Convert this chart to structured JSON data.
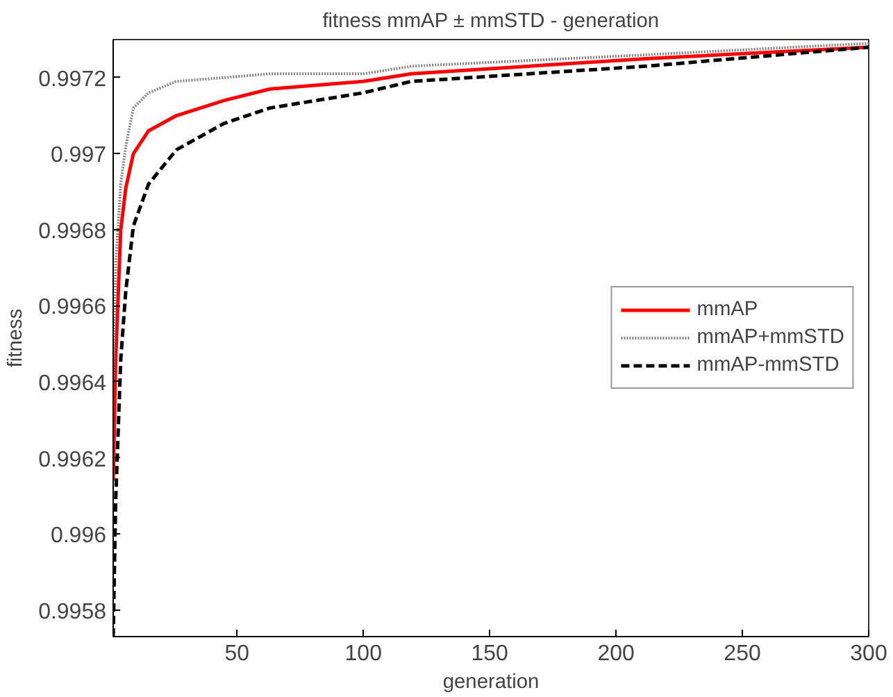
{
  "chart_data": {
    "type": "line",
    "title": "fitness mmAP ± mmSTD - generation",
    "xlabel": "generation",
    "ylabel": "fitness",
    "xlim": [
      1,
      300
    ],
    "ylim": [
      0.99573,
      0.9973
    ],
    "xticks": [
      50,
      100,
      150,
      200,
      250,
      300
    ],
    "yticks": [
      0.9958,
      0.996,
      0.9962,
      0.9964,
      0.9966,
      0.9968,
      0.997,
      0.9972
    ],
    "grid": false,
    "legend": "right",
    "marker": "none",
    "x": [
      1,
      2,
      4,
      6,
      9,
      15,
      26,
      45,
      63,
      100,
      119,
      212,
      300
    ],
    "series": [
      {
        "name": "mmAP",
        "color": "#ff0000",
        "line_style": "solid",
        "values": [
          0.99614,
          0.99646,
          0.9968,
          0.99691,
          0.997,
          0.99706,
          0.9971,
          0.99714,
          0.99717,
          0.99719,
          0.99721,
          0.99725,
          0.99728
        ]
      },
      {
        "name": "mmAP+mmSTD",
        "color": "#808080",
        "line_style": "dotted",
        "values": [
          0.9964,
          0.99671,
          0.99692,
          0.99702,
          0.99712,
          0.99716,
          0.99719,
          0.9972,
          0.99721,
          0.99721,
          0.99723,
          0.99726,
          0.99729
        ]
      },
      {
        "name": "mmAP-mmSTD",
        "color": "#000000",
        "line_style": "dashed",
        "values": [
          0.99573,
          0.99609,
          0.99646,
          0.99664,
          0.99681,
          0.99692,
          0.99701,
          0.99708,
          0.99712,
          0.99716,
          0.99719,
          0.99723,
          0.99728
        ]
      }
    ]
  }
}
